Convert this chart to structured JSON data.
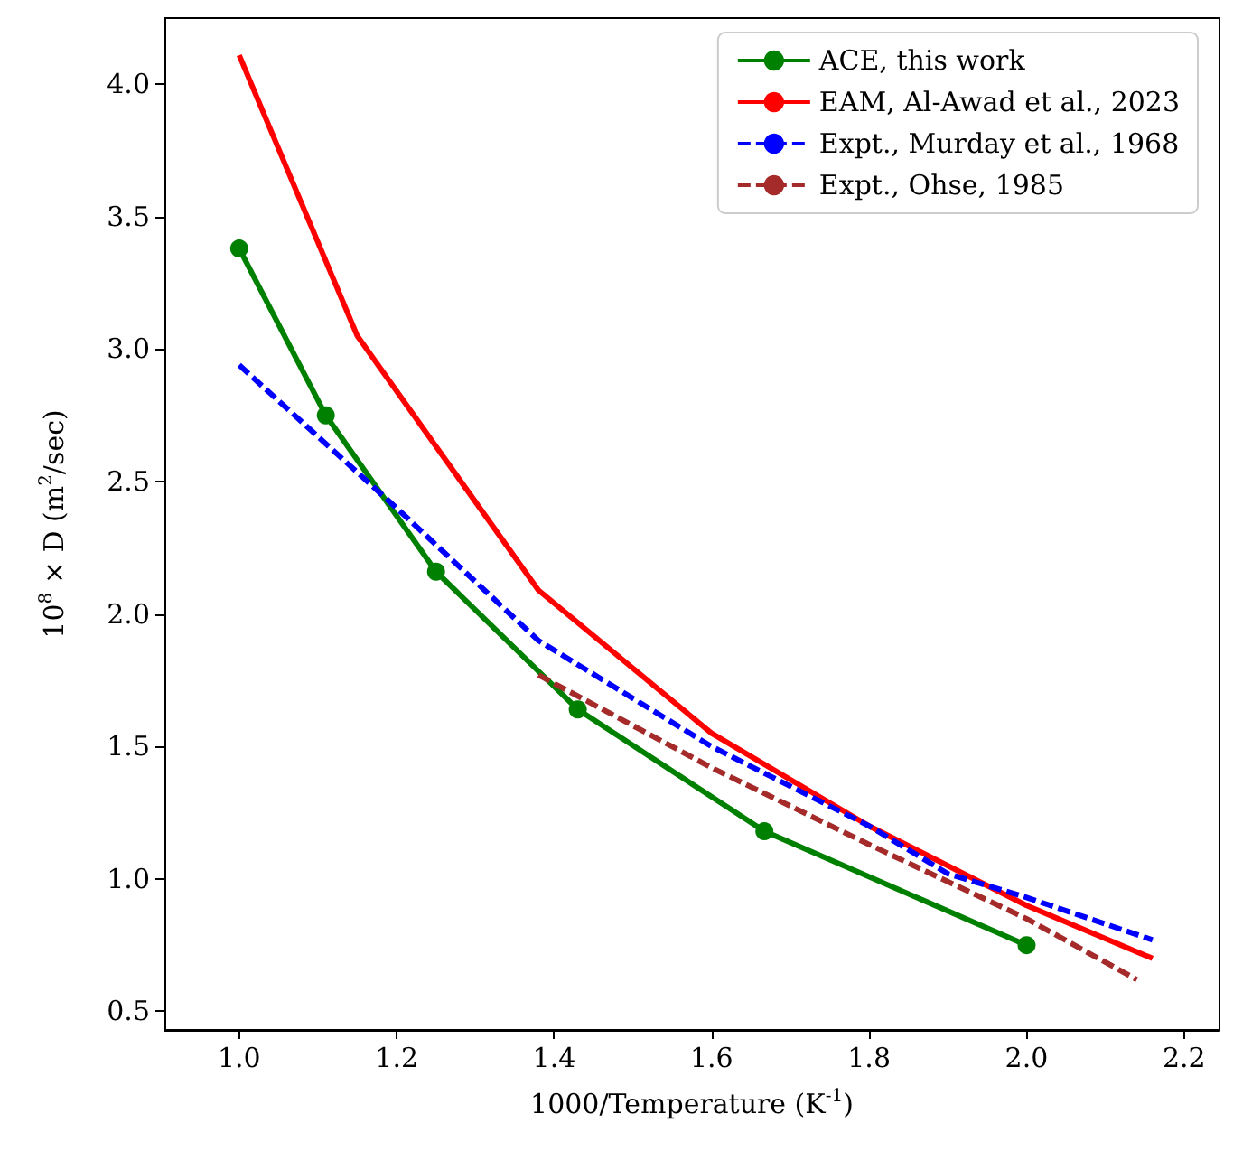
{
  "chart_data": {
    "type": "line",
    "xlabel": "1000/Temperature (K$^{-1}$)",
    "ylabel": "10$^{8}$ × D (m$^{2}$/sec)",
    "xlim": [
      0.905,
      2.245
    ],
    "ylim": [
      0.43,
      4.25
    ],
    "xticks": [
      {
        "value": 1,
        "label": "1.0"
      },
      {
        "value": 1.2,
        "label": "1.2"
      },
      {
        "value": 1.4,
        "label": "1.4"
      },
      {
        "value": 1.6,
        "label": "1.6"
      },
      {
        "value": 1.8,
        "label": "1.8"
      },
      {
        "value": 2,
        "label": "2.0"
      },
      {
        "value": 2.2,
        "label": "2.2"
      }
    ],
    "yticks": [
      {
        "value": 0.5,
        "label": "0.5"
      },
      {
        "value": 1,
        "label": "1.0"
      },
      {
        "value": 1.5,
        "label": "1.5"
      },
      {
        "value": 2,
        "label": "2.0"
      },
      {
        "value": 2.5,
        "label": "2.5"
      },
      {
        "value": 3,
        "label": "3.0"
      },
      {
        "value": 3.5,
        "label": "3.5"
      },
      {
        "value": 4,
        "label": "4.0"
      }
    ],
    "grid": false,
    "legend": "top right",
    "series": [
      {
        "name": "ACE, this work",
        "color": "#008000",
        "marker": "circle",
        "line_style": "solid",
        "x": [
          1.0,
          1.11,
          1.25,
          1.43,
          1.667,
          2.0
        ],
        "values": [
          3.38,
          2.75,
          2.16,
          1.64,
          1.18,
          0.75
        ]
      },
      {
        "name": "EAM, Al-Awad et al., 2023",
        "color": "#ff0000",
        "marker": "none",
        "line_style": "solid",
        "x": [
          1.0,
          1.15,
          1.38,
          1.6,
          1.8,
          2.0,
          2.16
        ],
        "values": [
          4.11,
          3.05,
          2.09,
          1.55,
          1.2,
          0.9,
          0.7
        ]
      },
      {
        "name": "Expt., Murday et al., 1968",
        "color": "#0000ff",
        "marker": "none",
        "line_style": "dashed",
        "x": [
          1.0,
          1.2,
          1.38,
          1.6,
          1.8,
          1.9,
          2.0,
          2.16
        ],
        "values": [
          2.94,
          2.4,
          1.9,
          1.5,
          1.2,
          1.02,
          0.93,
          0.77
        ]
      },
      {
        "name": "Expt., Ohse, 1985",
        "color": "#a52a2a",
        "marker": "none",
        "line_style": "dashed",
        "x": [
          1.38,
          1.6,
          1.8,
          2.0,
          2.14
        ],
        "values": [
          1.77,
          1.42,
          1.13,
          0.85,
          0.62
        ]
      }
    ]
  }
}
